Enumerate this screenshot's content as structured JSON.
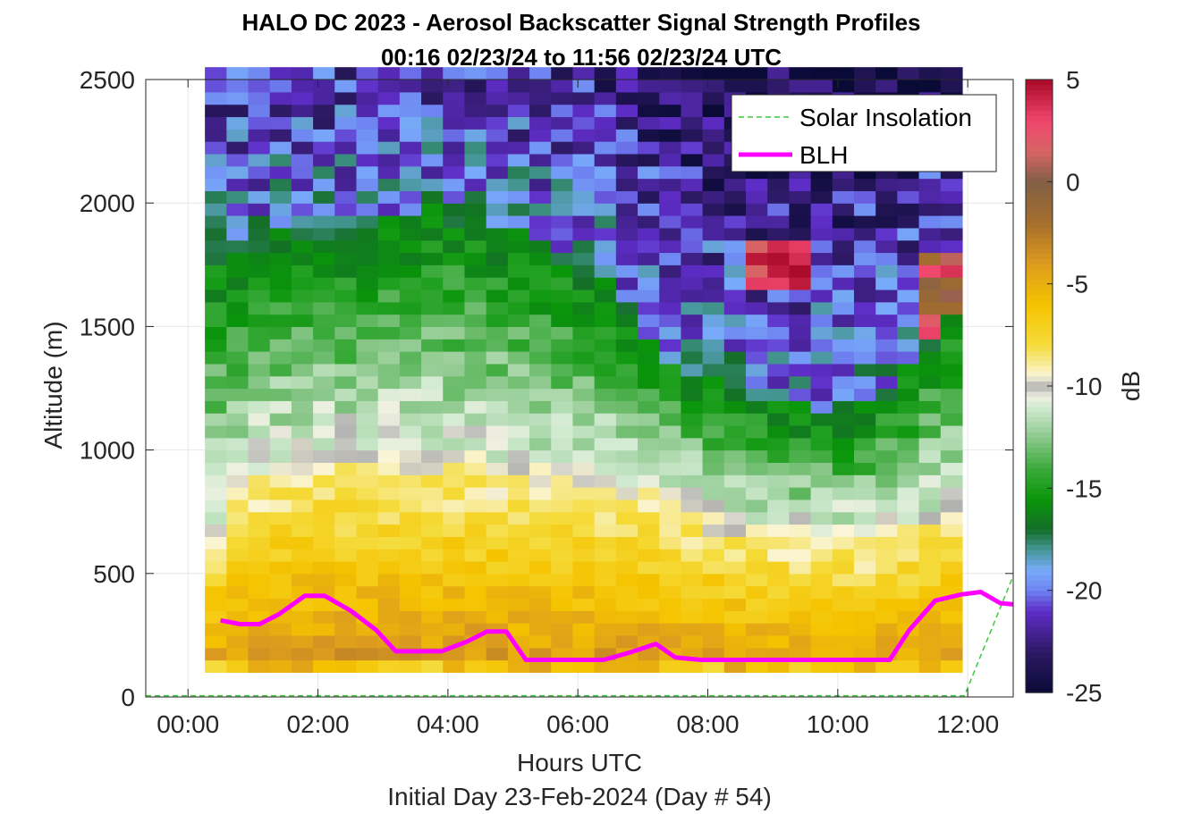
{
  "chart_data": {
    "type": "heatmap",
    "title": "HALO DC 2023 - Aerosol Backscatter Signal Strength Profiles",
    "subtitle": "00:16 02/23/24 to 11:56 02/23/24  UTC",
    "xlabel": "Hours UTC",
    "footnote": "Initial Day 23-Feb-2024 (Day # 54)",
    "ylabel": "Altitude (m)",
    "colorbar_label": "dB",
    "x_ticks": [
      "00:00",
      "02:00",
      "04:00",
      "06:00",
      "08:00",
      "10:00",
      "12:00"
    ],
    "x_tick_hours": [
      0,
      2,
      4,
      6,
      8,
      10,
      12
    ],
    "y_ticks": [
      0,
      500,
      1000,
      1500,
      2000,
      2500
    ],
    "colorbar_ticks": [
      5,
      0,
      -5,
      -10,
      -15,
      -20,
      -25
    ],
    "xlim_hours": [
      -0.65,
      12.7
    ],
    "ylim": [
      0,
      2500
    ],
    "clim": [
      -25,
      5
    ],
    "grid": true,
    "legend_position": "top-right",
    "legend": [
      {
        "name": "Solar Insolation",
        "style": "dashed",
        "color": "#3cc83c"
      },
      {
        "name": "BLH",
        "style": "solid",
        "color": "#ff00ff"
      }
    ],
    "heatmap": {
      "x_start_hours": 0.26,
      "x_step_hours": 0.333,
      "columns": 35,
      "y_start_m": 100,
      "y_step_m": 50,
      "rows": 49
    },
    "blh": {
      "hours": [
        0.5,
        0.8,
        1.1,
        1.4,
        1.8,
        2.1,
        2.5,
        2.9,
        3.2,
        3.6,
        3.9,
        4.3,
        4.6,
        4.9,
        5.2,
        5.6,
        6.0,
        6.4,
        6.8,
        7.2,
        7.5,
        7.9,
        8.3,
        8.8,
        9.3,
        9.8,
        10.3,
        10.8,
        11.1,
        11.5,
        11.9,
        12.2,
        12.5,
        12.7
      ],
      "altitude_m": [
        310,
        295,
        295,
        335,
        410,
        410,
        350,
        270,
        185,
        185,
        185,
        225,
        265,
        265,
        150,
        150,
        150,
        150,
        180,
        215,
        160,
        150,
        150,
        150,
        150,
        150,
        150,
        150,
        270,
        390,
        415,
        425,
        380,
        375
      ]
    },
    "solar_insolation": {
      "hours": [
        -0.65,
        11.95,
        12.7
      ],
      "altitude_m": [
        5,
        5,
        490
      ]
    }
  }
}
